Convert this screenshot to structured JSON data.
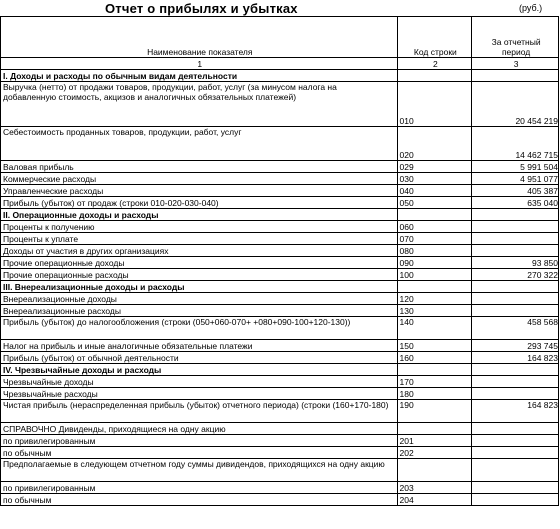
{
  "report": {
    "title": "Отчет о прибылях и убытках",
    "unit": "(руб.)",
    "headers": {
      "name": "Наименование показателя",
      "code": "Код строки",
      "period": "За отчетный период"
    },
    "col_index": [
      "1",
      "2",
      "3"
    ]
  },
  "rows": [
    {
      "name": "I. Доходы и расходы по обычным видам деятельности",
      "code": "",
      "value": "",
      "section": true
    },
    {
      "name": "Выручка (нетто) от продажи товаров, продукции, работ, услуг (за минусом налога на добавленную стоимость, акцизов и аналогичных обязательных платежей)",
      "code": "010",
      "value": "20 454 219",
      "lines": 4
    },
    {
      "name": "Себестоимость проданных товаров, продукции, работ, услуг",
      "code": "020",
      "value": "14 462 715",
      "lines": 3
    },
    {
      "name": "Валовая прибыль",
      "code": "029",
      "value": "5 991 504"
    },
    {
      "name": "Коммерческие расходы",
      "code": "030",
      "value": "4 951 077"
    },
    {
      "name": "Управленческие расходы",
      "code": "040",
      "value": "405 387"
    },
    {
      "name": "Прибыль (убыток) от продаж (строки 010-020-030-040)",
      "code": "050",
      "value": "635 040"
    },
    {
      "name": "II. Операционные доходы и расходы",
      "code": "",
      "value": "",
      "section": true
    },
    {
      "name": "Проценты к получению",
      "code": "060",
      "value": ""
    },
    {
      "name": "Проценты к уплате",
      "code": "070",
      "value": ""
    },
    {
      "name": "Доходы от участия в других организациях",
      "code": "080",
      "value": ""
    },
    {
      "name": "Прочие операционные доходы",
      "code": "090",
      "value": "93 850"
    },
    {
      "name": "Прочие операционные расходы",
      "code": "100",
      "value": "270 322"
    },
    {
      "name": "III. Внереализационные доходы и расходы",
      "code": "",
      "value": "",
      "section": true
    },
    {
      "name": "Внереализационные доходы",
      "code": "120",
      "value": ""
    },
    {
      "name": "Внереализационные расходы",
      "code": "130",
      "value": ""
    },
    {
      "name": "Прибыль (убыток) до налогообложения (строки (050+060-070+ +080+090-100+120-130))",
      "code": "140",
      "value": "458 568",
      "lines": 2
    },
    {
      "name": "Налог на прибыль и иные аналогичные обязательные платежи",
      "code": "150",
      "value": "293 745"
    },
    {
      "name": "Прибыль (убыток) от обычной деятельности",
      "code": "160",
      "value": "164 823"
    },
    {
      "name": "IV. Чрезвычайные доходы и расходы",
      "code": "",
      "value": "",
      "section": true
    },
    {
      "name": "Чрезвычайные доходы",
      "code": "170",
      "value": ""
    },
    {
      "name": "Чрезвычайные расходы",
      "code": "180",
      "value": ""
    },
    {
      "name": "Чистая прибыль (нераспределенная прибыль (убыток) отчетного периода) (строки (160+170-180)",
      "code": "190",
      "value": "164 823",
      "lines": 2
    },
    {
      "name": "СПРАВОЧНО Дивиденды, приходящиеся на одну акцию",
      "code": "",
      "value": ""
    },
    {
      "name": "по привилегированным",
      "code": "201",
      "value": "",
      "indent": true
    },
    {
      "name": "по обычным",
      "code": "202",
      "value": "",
      "indent": true
    },
    {
      "name": "Предполагаемые в следующем отчетном году суммы дивидендов, приходящихся на одну акцию",
      "code": "",
      "value": "",
      "lines": 2
    },
    {
      "name": "по привилегированным",
      "code": "203",
      "value": "",
      "indent": true
    },
    {
      "name": "по обычным",
      "code": "204",
      "value": "",
      "indent": true
    }
  ]
}
